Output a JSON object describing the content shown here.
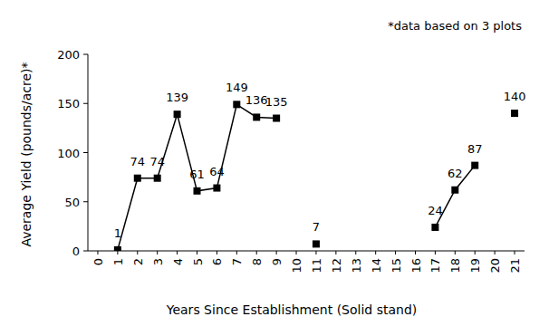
{
  "chart_data": {
    "type": "line",
    "annotations": [
      "*data based on 3 plots"
    ],
    "x_label": "Years Since Establishment (Solid stand)",
    "y_label": "Average Yield (pounds/acre)*",
    "x": [
      0,
      1,
      2,
      3,
      4,
      5,
      6,
      7,
      8,
      9,
      10,
      11,
      12,
      13,
      14,
      15,
      16,
      17,
      18,
      19,
      20,
      21
    ],
    "values": [
      null,
      1,
      74,
      74,
      139,
      61,
      64,
      149,
      136,
      135,
      null,
      7,
      null,
      null,
      null,
      null,
      null,
      24,
      62,
      87,
      null,
      140
    ],
    "color": "#000000",
    "marker": "square",
    "line_style": "solid",
    "data_labels": true,
    "grid": false,
    "xlim": [
      -0.5,
      21.5
    ],
    "xticks": [
      0,
      1,
      2,
      3,
      4,
      5,
      6,
      7,
      8,
      9,
      10,
      11,
      12,
      13,
      14,
      15,
      16,
      17,
      18,
      19,
      20,
      21
    ],
    "ylim": [
      0,
      200
    ],
    "yticks": [
      0,
      50,
      100,
      150,
      200
    ]
  }
}
